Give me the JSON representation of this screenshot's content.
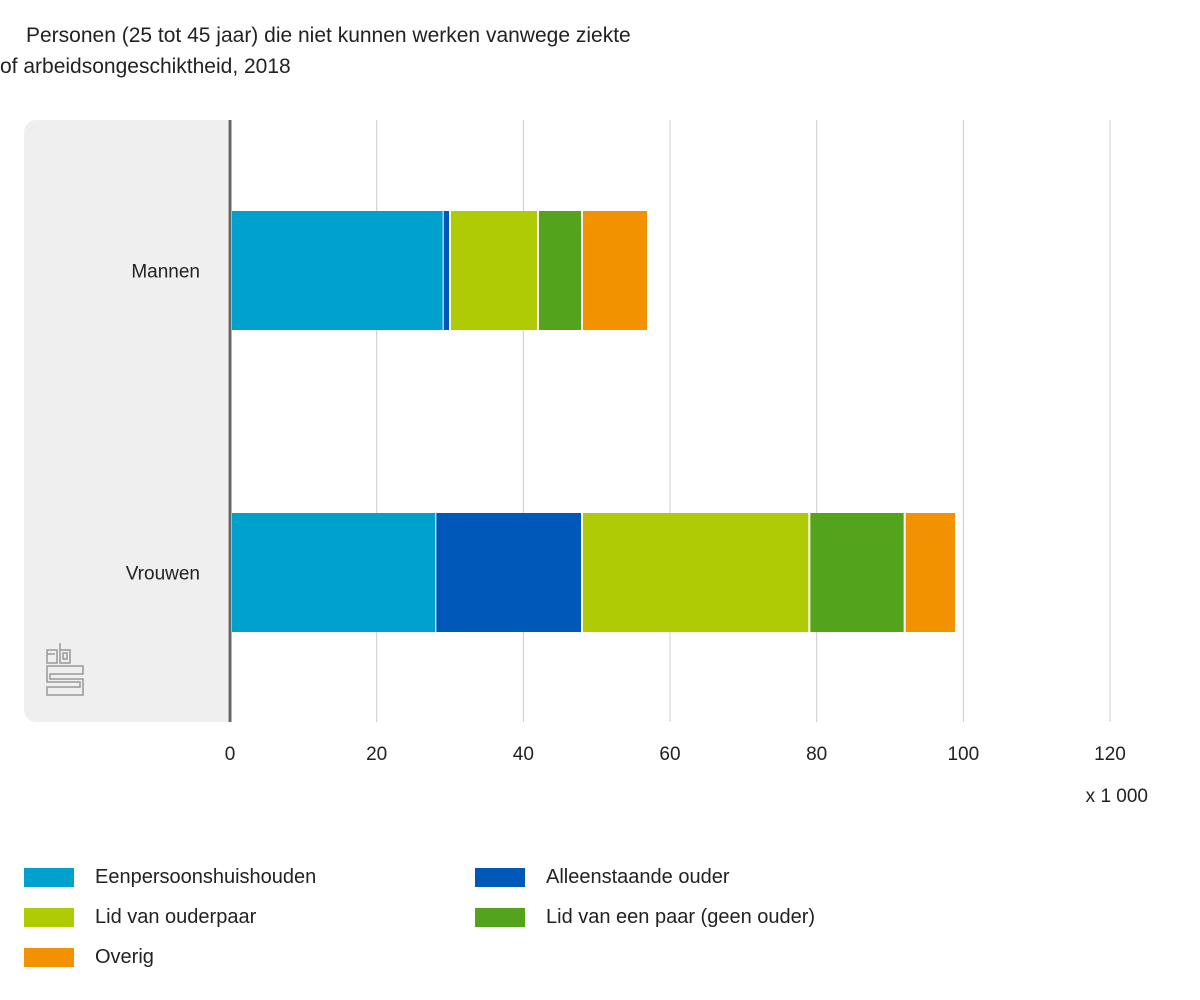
{
  "title_line1": "Personen (25 tot 45 jaar) die niet kunnen werken vanwege ziekte",
  "title_line2": "of arbeidsongeschiktheid, 2018",
  "chart_data": {
    "type": "bar",
    "orientation": "horizontal",
    "stacked": true,
    "categories": [
      "Mannen",
      "Vrouwen"
    ],
    "series": [
      {
        "name": "Eenpersoonshuishouden",
        "color": "#00a1cd",
        "values": [
          29,
          28
        ]
      },
      {
        "name": "Alleenstaande ouder",
        "color": "#0058b8",
        "values": [
          1,
          20
        ]
      },
      {
        "name": "Lid van ouderpaar",
        "color": "#afcb05",
        "values": [
          12,
          31
        ]
      },
      {
        "name": "Lid van een paar (geen ouder)",
        "color": "#53a31d",
        "values": [
          6,
          13
        ]
      },
      {
        "name": "Overig",
        "color": "#f39200",
        "values": [
          9,
          7
        ]
      }
    ],
    "xlim": [
      0,
      120
    ],
    "xticks": [
      "0",
      "20",
      "40",
      "60",
      "80",
      "100",
      "120"
    ],
    "xunit": "x 1 000",
    "grid": true,
    "legend_position": "bottom"
  }
}
